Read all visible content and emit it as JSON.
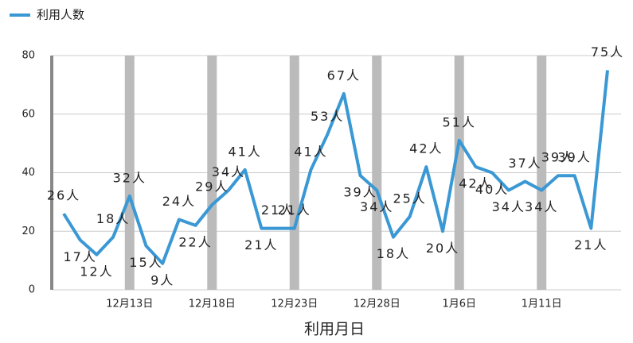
{
  "chart_data": {
    "type": "line",
    "x_label": "利用月日",
    "categories": [
      null,
      null,
      null,
      null,
      "12月13日",
      null,
      null,
      null,
      null,
      "12月18日",
      null,
      null,
      null,
      null,
      "12月23日",
      null,
      null,
      null,
      null,
      "12月28日",
      null,
      null,
      null,
      null,
      "1月6日",
      null,
      null,
      null,
      null,
      "1月11日",
      null,
      null,
      null,
      null
    ],
    "series": [
      {
        "name": "利用人数",
        "color": "#3a98d4",
        "values": [
          26,
          17,
          12,
          18,
          32,
          15,
          9,
          24,
          22,
          29,
          34,
          41,
          21,
          21,
          21,
          41,
          53,
          67,
          39,
          34,
          18,
          25,
          42,
          20,
          51,
          42,
          40,
          34,
          37,
          34,
          39,
          39,
          21,
          75
        ],
        "value_labels": [
          "26人",
          "17人",
          "12人",
          "18人",
          "32人",
          "15人",
          "9人",
          "24人",
          "22人",
          "29人",
          "34人",
          "41人",
          "21人",
          "21人",
          "21人",
          "41人",
          "53人",
          "67人",
          "39人",
          "34人",
          "18人",
          "25人",
          "42人",
          "20人",
          "51人",
          "42人",
          "40人",
          "34人",
          "37人",
          "34人",
          "39人",
          "39人",
          "21人",
          "75人"
        ]
      }
    ],
    "ylim": [
      0,
      80
    ],
    "yticks": [
      0,
      20,
      40,
      60,
      80
    ],
    "grid": true
  }
}
